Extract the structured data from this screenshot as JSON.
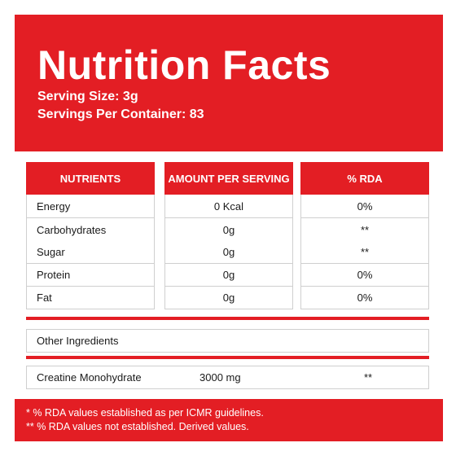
{
  "header": {
    "title": "Nutrition Facts",
    "serving_size": "Serving Size: 3g",
    "servings_per_container": "Servings Per Container: 83"
  },
  "table": {
    "columns": [
      "NUTRIENTS",
      "AMOUNT PER SERVING",
      "% RDA"
    ],
    "rows": [
      {
        "nutrient": "Energy",
        "amount": "0 Kcal",
        "rda": "0%"
      },
      {
        "nutrient": "Carbohydrates",
        "amount": "0g",
        "rda": "**"
      },
      {
        "nutrient": "Sugar",
        "amount": "0g",
        "rda": "**"
      },
      {
        "nutrient": "Protein",
        "amount": "0g",
        "rda": "0%"
      },
      {
        "nutrient": "Fat",
        "amount": "0g",
        "rda": "0%"
      }
    ]
  },
  "other_ingredients": {
    "label": "Other Ingredients",
    "items": [
      {
        "name": "Creatine Monohydrate",
        "amount": "3000 mg",
        "rda": "**"
      }
    ]
  },
  "footer": {
    "note_1": "* % RDA values established as per ICMR guidelines.",
    "note_2": "** % RDA values not established. Derived values."
  },
  "colors": {
    "accent": "#e31e24",
    "border": "#cfcfcf"
  }
}
